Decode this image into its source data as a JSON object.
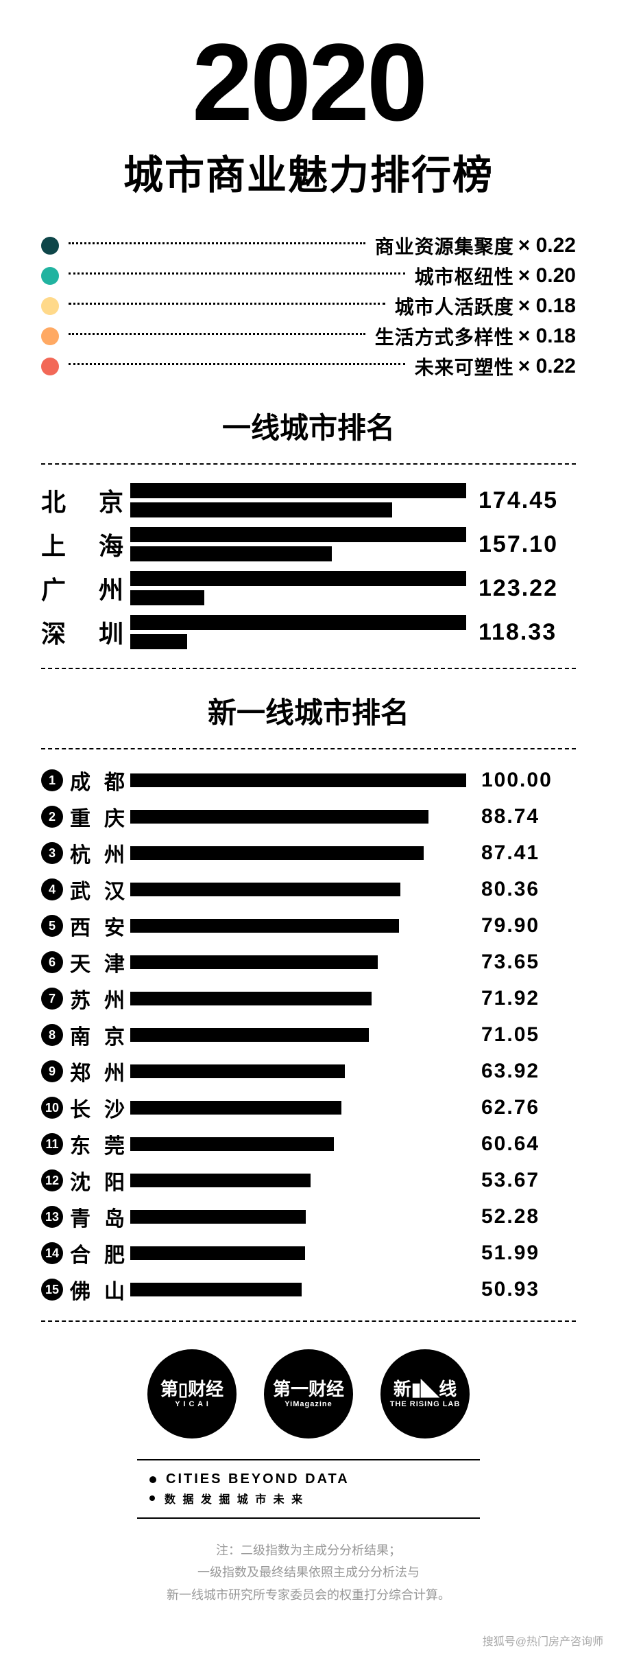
{
  "colors": {
    "bar": "#000000",
    "background": "#ffffff",
    "note_text": "#999999"
  },
  "title": {
    "year": "2020",
    "subtitle": "城市商业魅力排行榜"
  },
  "legend": [
    {
      "label": "商业资源集聚度",
      "weight": "× 0.22",
      "color": "#0e4649"
    },
    {
      "label": "城市枢纽性",
      "weight": "× 0.20",
      "color": "#21b3a0"
    },
    {
      "label": "城市人活跃度",
      "weight": "× 0.18",
      "color": "#ffd98a"
    },
    {
      "label": "生活方式多样性",
      "weight": "× 0.18",
      "color": "#ffa963"
    },
    {
      "label": "未来可塑性",
      "weight": "× 0.22",
      "color": "#f26857"
    }
  ],
  "tier1": {
    "title": "一线城市排名",
    "max": 175,
    "cities": [
      {
        "name": "北　京",
        "score": "174.45",
        "sub_ratio": 0.78
      },
      {
        "name": "上　海",
        "score": "157.10",
        "sub_ratio": 0.6
      },
      {
        "name": "广　州",
        "score": "123.22",
        "sub_ratio": 0.22
      },
      {
        "name": "深　圳",
        "score": "118.33",
        "sub_ratio": 0.17
      }
    ]
  },
  "new_tier1": {
    "title": "新一线城市排名",
    "max": 100,
    "cities": [
      {
        "rank": 1,
        "name": "成都",
        "score": "100.00",
        "value": 100.0
      },
      {
        "rank": 2,
        "name": "重庆",
        "score": "88.74",
        "value": 88.74
      },
      {
        "rank": 3,
        "name": "杭州",
        "score": "87.41",
        "value": 87.41
      },
      {
        "rank": 4,
        "name": "武汉",
        "score": "80.36",
        "value": 80.36
      },
      {
        "rank": 5,
        "name": "西安",
        "score": "79.90",
        "value": 79.9
      },
      {
        "rank": 6,
        "name": "天津",
        "score": "73.65",
        "value": 73.65
      },
      {
        "rank": 7,
        "name": "苏州",
        "score": "71.92",
        "value": 71.92
      },
      {
        "rank": 8,
        "name": "南京",
        "score": "71.05",
        "value": 71.05
      },
      {
        "rank": 9,
        "name": "郑州",
        "score": "63.92",
        "value": 63.92
      },
      {
        "rank": 10,
        "name": "长沙",
        "score": "62.76",
        "value": 62.76
      },
      {
        "rank": 11,
        "name": "东莞",
        "score": "60.64",
        "value": 60.64
      },
      {
        "rank": 12,
        "name": "沈阳",
        "score": "53.67",
        "value": 53.67
      },
      {
        "rank": 13,
        "name": "青岛",
        "score": "52.28",
        "value": 52.28
      },
      {
        "rank": 14,
        "name": "合肥",
        "score": "51.99",
        "value": 51.99
      },
      {
        "rank": 15,
        "name": "佛山",
        "score": "50.93",
        "value": 50.93
      }
    ]
  },
  "logos": [
    {
      "main": "第▯财经",
      "sub": "Y I C A I"
    },
    {
      "main": "第一财经",
      "sub": "YiMagazine"
    },
    {
      "main": "新▮◣线",
      "sub": "THE RISING LAB"
    }
  ],
  "footer": {
    "line1": "CITIES BEYOND DATA",
    "line2": "数 据 发 掘 城 市 未 来"
  },
  "note": {
    "l1": "注：二级指数为主成分分析结果；",
    "l2": "一级指数及最终结果依照主成分分析法与",
    "l3": "新一线城市研究所专家委员会的权重打分综合计算。"
  },
  "watermark": "搜狐号@热门房产咨询师"
}
